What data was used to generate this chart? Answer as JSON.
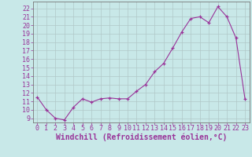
{
  "x": [
    0,
    1,
    2,
    3,
    4,
    5,
    6,
    7,
    8,
    9,
    10,
    11,
    12,
    13,
    14,
    15,
    16,
    17,
    18,
    19,
    20,
    21,
    22,
    23
  ],
  "y": [
    11.5,
    10.0,
    9.0,
    8.8,
    10.3,
    11.3,
    10.9,
    11.3,
    11.4,
    11.3,
    11.3,
    12.2,
    13.0,
    14.5,
    15.5,
    17.3,
    19.2,
    20.8,
    21.0,
    20.3,
    22.2,
    21.0,
    18.5,
    11.3
  ],
  "xlabel": "Windchill (Refroidissement éolien,°C)",
  "ylabel_ticks": [
    9,
    10,
    11,
    12,
    13,
    14,
    15,
    16,
    17,
    18,
    19,
    20,
    21,
    22
  ],
  "ylim": [
    8.5,
    22.8
  ],
  "xlim": [
    -0.5,
    23.5
  ],
  "line_color": "#993399",
  "marker_color": "#993399",
  "bg_color": "#c8e8e8",
  "grid_color": "#b0c8c8",
  "xlabel_fontsize": 7.0,
  "tick_fontsize": 6.0
}
